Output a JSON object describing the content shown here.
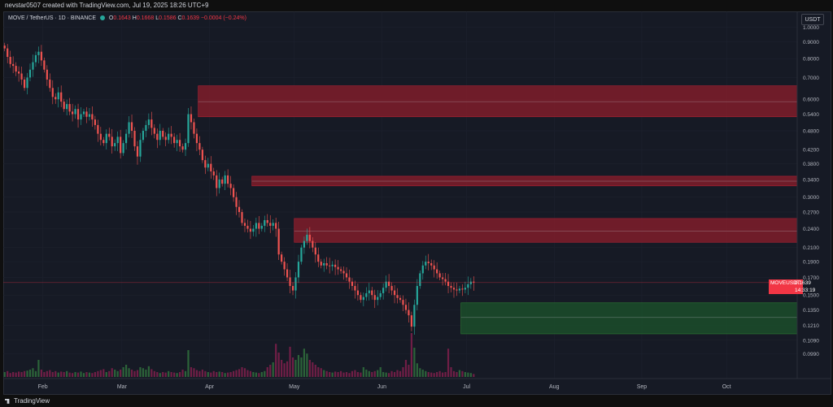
{
  "header": {
    "created_by": "nevstar0507 created with TradingView.com, Jul 19, 2025 18:26 UTC+9"
  },
  "legend": {
    "symbol": "MOVE / TetherUS · 1D · BINANCE",
    "o_label": "O",
    "o": "0.1643",
    "h_label": "H",
    "h": "0.1668",
    "l_label": "L",
    "l": "0.1586",
    "c_label": "C",
    "c": "0.1639",
    "change": "−0.0004 (−0.24%)"
  },
  "quote_currency": "USDT",
  "last_price": {
    "ticker": "MOVEUSDT",
    "price": "0.1639",
    "countdown": "14:33:19",
    "color": "#f23645"
  },
  "footer": {
    "brand": "TradingView"
  },
  "colors": {
    "up": "#26a69a",
    "down": "#ef5350",
    "resistance_zone": "#7f1d2a",
    "support_zone": "#1b4d2a",
    "background": "#161a25"
  },
  "chart_data": {
    "type": "candlestick",
    "symbol": "MOVEUSDT",
    "scale": "log",
    "ylim": [
      0.085,
      1.08
    ],
    "y_ticks": [
      "1.0000",
      "0.9000",
      "0.8000",
      "0.7000",
      "0.6000",
      "0.5400",
      "0.4800",
      "0.4200",
      "0.3800",
      "0.3400",
      "0.3000",
      "0.2700",
      "0.2400",
      "0.2100",
      "0.1900",
      "0.1700",
      "0.1500",
      "0.1350",
      "0.1210",
      "0.1090",
      "0.0990"
    ],
    "x_ticks": [
      "Feb",
      "Mar",
      "Apr",
      "May",
      "Jun",
      "Jul",
      "Aug",
      "Sep",
      "Oct"
    ],
    "x_range": [
      "2025-01-18",
      "2025-10-26"
    ],
    "x_tick_dates": [
      "2025-02-01",
      "2025-03-01",
      "2025-04-01",
      "2025-05-01",
      "2025-06-01",
      "2025-07-01",
      "2025-08-01",
      "2025-09-01",
      "2025-10-01"
    ],
    "start_date": "2025-01-18",
    "closes": [
      0.86,
      0.81,
      0.77,
      0.76,
      0.73,
      0.72,
      0.69,
      0.65,
      0.7,
      0.74,
      0.78,
      0.82,
      0.84,
      0.79,
      0.74,
      0.69,
      0.65,
      0.61,
      0.6,
      0.63,
      0.59,
      0.56,
      0.58,
      0.55,
      0.54,
      0.56,
      0.52,
      0.54,
      0.55,
      0.53,
      0.54,
      0.52,
      0.5,
      0.47,
      0.45,
      0.44,
      0.47,
      0.46,
      0.43,
      0.44,
      0.46,
      0.41,
      0.44,
      0.47,
      0.51,
      0.48,
      0.43,
      0.4,
      0.45,
      0.48,
      0.5,
      0.52,
      0.49,
      0.47,
      0.45,
      0.48,
      0.46,
      0.45,
      0.47,
      0.46,
      0.44,
      0.45,
      0.43,
      0.42,
      0.44,
      0.54,
      0.51,
      0.47,
      0.44,
      0.42,
      0.39,
      0.37,
      0.38,
      0.36,
      0.35,
      0.32,
      0.34,
      0.33,
      0.35,
      0.33,
      0.32,
      0.3,
      0.28,
      0.27,
      0.25,
      0.245,
      0.24,
      0.235,
      0.24,
      0.25,
      0.24,
      0.245,
      0.255,
      0.25,
      0.245,
      0.25,
      0.24,
      0.2,
      0.19,
      0.18,
      0.17,
      0.16,
      0.155,
      0.17,
      0.19,
      0.21,
      0.22,
      0.23,
      0.22,
      0.21,
      0.2,
      0.19,
      0.185,
      0.188,
      0.185,
      0.184,
      0.186,
      0.183,
      0.18,
      0.178,
      0.175,
      0.17,
      0.165,
      0.16,
      0.155,
      0.15,
      0.145,
      0.148,
      0.152,
      0.155,
      0.15,
      0.145,
      0.148,
      0.152,
      0.158,
      0.165,
      0.16,
      0.155,
      0.15,
      0.147,
      0.145,
      0.14,
      0.135,
      0.13,
      0.12,
      0.14,
      0.16,
      0.175,
      0.185,
      0.19,
      0.188,
      0.185,
      0.18,
      0.175,
      0.17,
      0.168,
      0.165,
      0.16,
      0.158,
      0.156,
      0.155,
      0.157,
      0.156,
      0.158,
      0.162,
      0.165,
      0.1639
    ],
    "volumes": [
      0.1,
      0.12,
      0.08,
      0.1,
      0.09,
      0.11,
      0.1,
      0.12,
      0.13,
      0.15,
      0.18,
      0.12,
      0.35,
      0.15,
      0.1,
      0.12,
      0.14,
      0.1,
      0.12,
      0.09,
      0.11,
      0.1,
      0.12,
      0.09,
      0.08,
      0.1,
      0.09,
      0.11,
      0.08,
      0.1,
      0.09,
      0.08,
      0.1,
      0.12,
      0.14,
      0.16,
      0.1,
      0.12,
      0.18,
      0.15,
      0.12,
      0.15,
      0.2,
      0.25,
      0.18,
      0.15,
      0.12,
      0.14,
      0.2,
      0.18,
      0.15,
      0.22,
      0.16,
      0.12,
      0.1,
      0.08,
      0.1,
      0.09,
      0.12,
      0.1,
      0.09,
      0.08,
      0.1,
      0.15,
      0.12,
      0.55,
      0.2,
      0.18,
      0.14,
      0.12,
      0.15,
      0.12,
      0.1,
      0.09,
      0.12,
      0.1,
      0.11,
      0.1,
      0.08,
      0.09,
      0.1,
      0.12,
      0.14,
      0.16,
      0.2,
      0.18,
      0.14,
      0.12,
      0.1,
      0.09,
      0.08,
      0.1,
      0.12,
      0.2,
      0.25,
      0.3,
      0.68,
      0.5,
      0.35,
      0.28,
      0.32,
      0.62,
      0.4,
      0.35,
      0.45,
      0.4,
      0.58,
      0.48,
      0.35,
      0.3,
      0.25,
      0.2,
      0.18,
      0.14,
      0.12,
      0.1,
      0.09,
      0.11,
      0.1,
      0.12,
      0.09,
      0.1,
      0.08,
      0.12,
      0.14,
      0.1,
      0.09,
      0.2,
      0.15,
      0.12,
      0.1,
      0.12,
      0.14,
      0.2,
      0.1,
      0.09,
      0.08,
      0.12,
      0.1,
      0.14,
      0.12,
      0.2,
      0.35,
      0.25,
      0.9,
      0.6,
      0.28,
      0.18,
      0.15,
      0.12,
      0.1,
      0.09,
      0.08,
      0.1,
      0.12,
      0.09,
      0.1,
      0.58,
      0.2,
      0.12,
      0.1,
      0.14,
      0.12,
      0.1,
      0.09,
      0.08,
      0.06
    ],
    "zones": [
      {
        "type": "resistance",
        "low": 0.53,
        "high": 0.66,
        "mid": 0.59,
        "from": "2025-03-28"
      },
      {
        "type": "resistance",
        "low": 0.325,
        "high": 0.348,
        "mid": 0.336,
        "from": "2025-04-16"
      },
      {
        "type": "resistance",
        "low": 0.218,
        "high": 0.258,
        "mid": 0.236,
        "from": "2025-05-01"
      },
      {
        "type": "support",
        "low": 0.114,
        "high": 0.142,
        "mid": 0.128,
        "from": "2025-06-29"
      }
    ],
    "last_price_line": 0.1639
  }
}
